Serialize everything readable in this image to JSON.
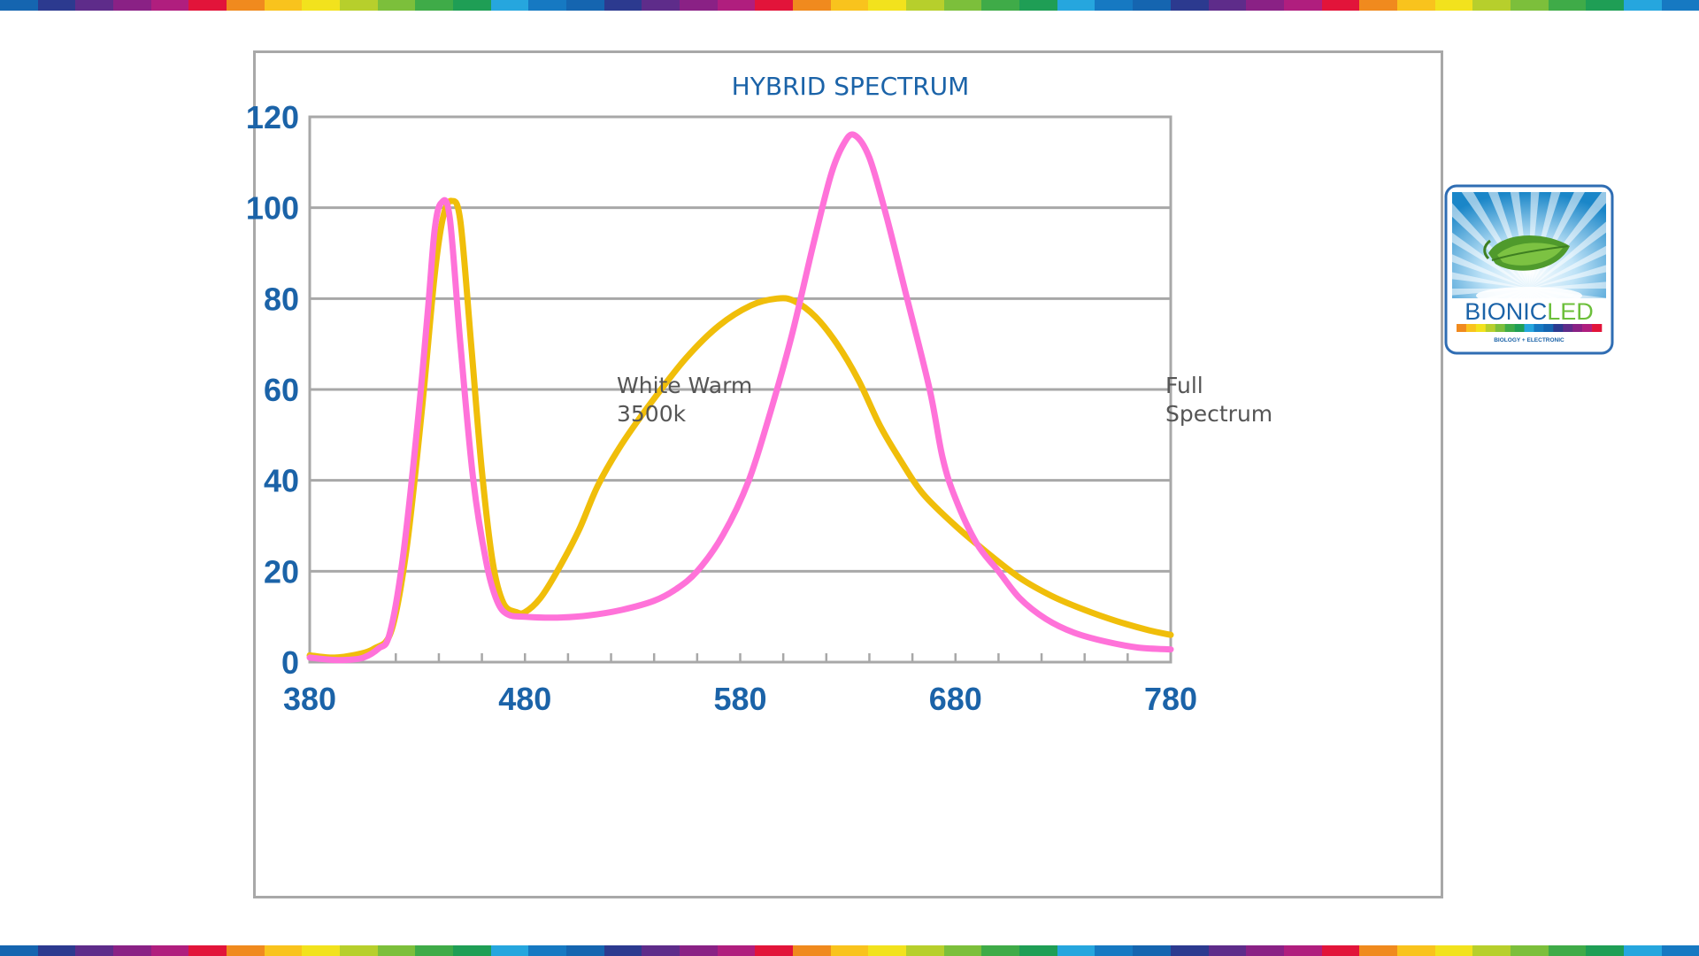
{
  "page": {
    "stripe_colors": [
      "#1565b0",
      "#2c3a8f",
      "#5e2c8a",
      "#8a2185",
      "#b01e7e",
      "#e2143a",
      "#f08a1e",
      "#f9c31d",
      "#f2e21d",
      "#b7cf2c",
      "#7cbf3b",
      "#3fab48",
      "#1f9e55",
      "#26a6de",
      "#1679c2"
    ]
  },
  "chart_data": {
    "type": "line",
    "title": "HYBRID SPECTRUM",
    "xlabel": "",
    "ylabel": "",
    "xlim": [
      380,
      780
    ],
    "ylim": [
      0,
      120
    ],
    "x_ticks": [
      380,
      480,
      580,
      680,
      780
    ],
    "x_minor_step": 20,
    "y_ticks": [
      0,
      20,
      40,
      60,
      80,
      100,
      120
    ],
    "grid": true,
    "series": [
      {
        "name": "White Warm 3500k",
        "color": "#f0be0a",
        "points": [
          [
            380,
            1.5
          ],
          [
            390,
            1
          ],
          [
            400,
            1.5
          ],
          [
            410,
            3
          ],
          [
            418,
            7
          ],
          [
            425,
            25
          ],
          [
            432,
            55
          ],
          [
            438,
            85
          ],
          [
            442,
            98
          ],
          [
            446,
            101.5
          ],
          [
            450,
            97
          ],
          [
            455,
            70
          ],
          [
            460,
            42
          ],
          [
            465,
            22
          ],
          [
            470,
            13
          ],
          [
            476,
            11
          ],
          [
            480,
            11
          ],
          [
            487,
            14
          ],
          [
            495,
            20
          ],
          [
            505,
            29
          ],
          [
            514,
            39
          ],
          [
            525,
            48
          ],
          [
            540,
            58
          ],
          [
            555,
            67
          ],
          [
            570,
            74
          ],
          [
            585,
            78.5
          ],
          [
            597,
            80
          ],
          [
            605,
            79.5
          ],
          [
            615,
            76
          ],
          [
            625,
            70
          ],
          [
            635,
            62
          ],
          [
            645,
            52
          ],
          [
            655,
            44
          ],
          [
            665,
            37
          ],
          [
            680,
            30
          ],
          [
            695,
            24
          ],
          [
            710,
            18.5
          ],
          [
            725,
            14.5
          ],
          [
            740,
            11.5
          ],
          [
            755,
            9
          ],
          [
            770,
            7
          ],
          [
            780,
            6
          ]
        ]
      },
      {
        "name": "Full Spectrum",
        "color": "#ff72d9",
        "points": [
          [
            380,
            1
          ],
          [
            390,
            0.5
          ],
          [
            398,
            0.5
          ],
          [
            405,
            1
          ],
          [
            412,
            3
          ],
          [
            417,
            6
          ],
          [
            423,
            22
          ],
          [
            430,
            52
          ],
          [
            435,
            78
          ],
          [
            438,
            95
          ],
          [
            441,
            101
          ],
          [
            445,
            98
          ],
          [
            450,
            70
          ],
          [
            456,
            40
          ],
          [
            462,
            22
          ],
          [
            467,
            13.5
          ],
          [
            472,
            10.5
          ],
          [
            480,
            10
          ],
          [
            495,
            9.8
          ],
          [
            510,
            10.3
          ],
          [
            525,
            11.5
          ],
          [
            540,
            13.5
          ],
          [
            550,
            16
          ],
          [
            560,
            20
          ],
          [
            572,
            28
          ],
          [
            584,
            40
          ],
          [
            594,
            55
          ],
          [
            604,
            72
          ],
          [
            614,
            92
          ],
          [
            622,
            107
          ],
          [
            628,
            114
          ],
          [
            633,
            116
          ],
          [
            640,
            111
          ],
          [
            648,
            98
          ],
          [
            657,
            81
          ],
          [
            668,
            60
          ],
          [
            674,
            45
          ],
          [
            680,
            36
          ],
          [
            690,
            26
          ],
          [
            700,
            20
          ],
          [
            710,
            14
          ],
          [
            722,
            9.5
          ],
          [
            735,
            6.5
          ],
          [
            750,
            4.5
          ],
          [
            765,
            3.2
          ],
          [
            780,
            2.8
          ]
        ]
      }
    ],
    "annotations": [
      {
        "series": "White Warm 3500k",
        "lines": [
          "White Warm",
          "3500k"
        ]
      },
      {
        "series": "Full Spectrum",
        "lines": [
          "Full",
          "Spectrum"
        ]
      }
    ]
  },
  "logo": {
    "brand_part1": "BIONIC",
    "brand_part2": "LED",
    "tagline": "BIOLOGY + ELECTRONIC",
    "brand_color_1": "#1b63a8",
    "brand_color_2": "#6cbf3a",
    "icon": "leaf-sunburst-icon"
  }
}
